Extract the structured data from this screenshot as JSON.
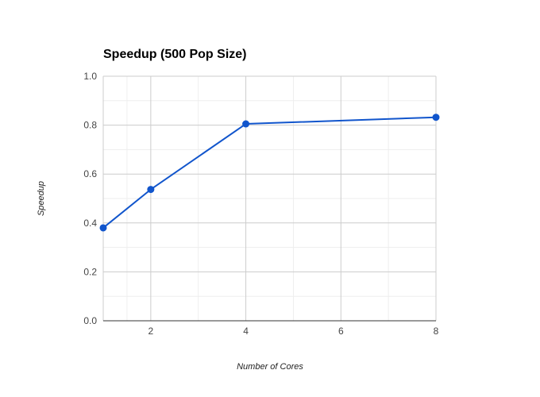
{
  "chart_data": {
    "type": "line",
    "title": "Speedup (500 Pop Size)",
    "xlabel": "Number of Cores",
    "ylabel": "Speedup",
    "x": [
      1,
      2,
      4,
      8
    ],
    "series": [
      {
        "values": [
          0.38,
          0.537,
          0.805,
          0.832
        ]
      }
    ],
    "xlim": [
      1,
      8
    ],
    "ylim": [
      0,
      1
    ],
    "x_ticks": [
      2,
      4,
      6,
      8
    ],
    "y_ticks": [
      0,
      0.2,
      0.4,
      0.6,
      0.8,
      1
    ],
    "y_tick_labels": [
      "0.0",
      "0.2",
      "0.4",
      "0.6",
      "0.8",
      "1.0"
    ],
    "grid": true,
    "legend": "none",
    "colors": {
      "line": "#1155cc",
      "grid_major": "#cccccc",
      "grid_minor": "#eeeeee",
      "baseline": "#333333"
    }
  }
}
